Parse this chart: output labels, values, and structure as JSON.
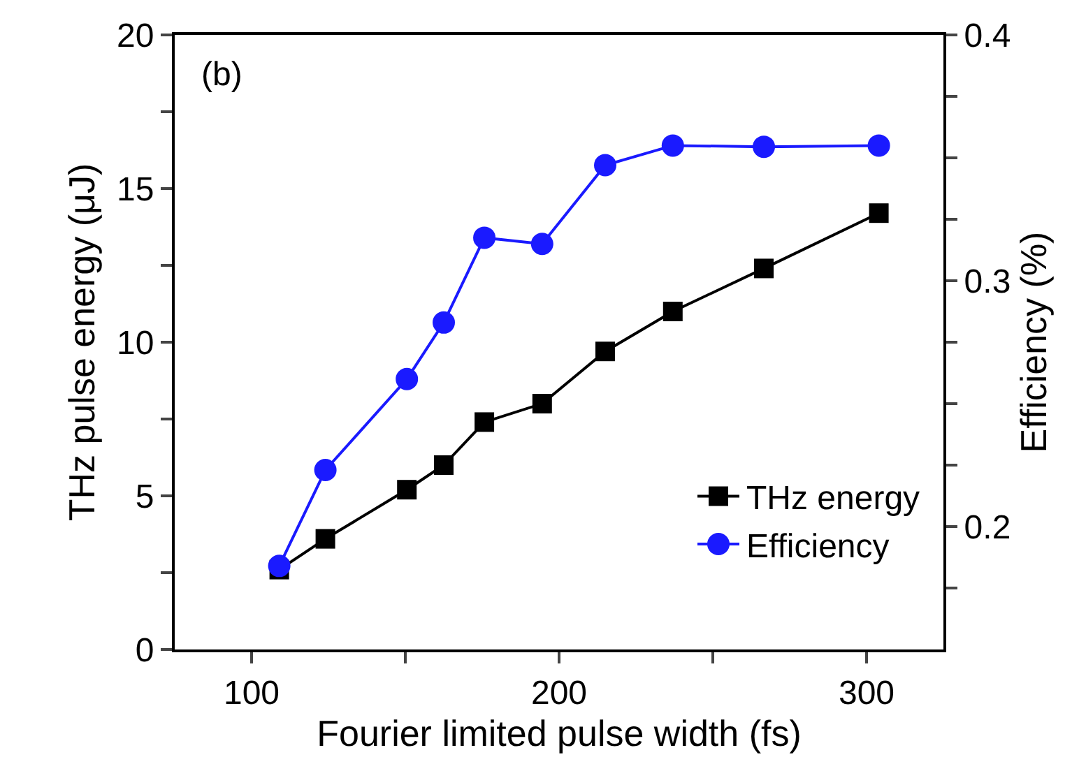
{
  "chart_data": {
    "type": "line",
    "xlabel": "Fourier limited pulse width (fs)",
    "ylabel": "THz pulse energy (μJ)",
    "y2label": "Efficiency (%)",
    "annotations": [
      "(b)"
    ],
    "x": [
      109,
      124,
      150.5,
      162.5,
      175.7,
      194.5,
      215,
      237,
      266.6,
      304
    ],
    "series": [
      {
        "name": "THz energy",
        "color": "#000000",
        "marker": "square",
        "values": [
          2.6,
          3.6,
          5.2,
          6.0,
          7.4,
          8.0,
          9.7,
          11.0,
          12.4,
          14.2
        ]
      },
      {
        "name": "Efficiency",
        "color": "#1a1aff",
        "marker": "circle",
        "axis": "y2",
        "values": [
          0.184,
          0.223,
          0.26,
          0.283,
          0.3175,
          0.315,
          0.347,
          0.355,
          0.3545,
          0.355
        ]
      }
    ],
    "xlim": [
      75,
      325
    ],
    "xticks": [
      100,
      {
        "value": 150,
        "label": null
      },
      200,
      {
        "value": 250,
        "label": null
      },
      300
    ],
    "ylim": [
      0,
      20
    ],
    "yticks": [
      0,
      {
        "value": 2.5,
        "label": null
      },
      5,
      {
        "value": 7.5,
        "label": null
      },
      10,
      {
        "value": 12.5,
        "label": null
      },
      15,
      {
        "value": 17.5,
        "label": null
      },
      20
    ],
    "y2lim": [
      0.15,
      0.4
    ],
    "y2ticks": [
      {
        "value": 0.175,
        "label": null
      },
      0.2,
      {
        "value": 0.225,
        "label": null
      },
      {
        "value": 0.25,
        "label": null
      },
      {
        "value": 0.275,
        "label": null
      },
      0.3,
      {
        "value": 0.325,
        "label": null
      },
      {
        "value": 0.35,
        "label": null
      },
      {
        "value": 0.375,
        "label": null
      },
      0.4
    ],
    "legend": "bottom right",
    "line_style": "solid"
  }
}
